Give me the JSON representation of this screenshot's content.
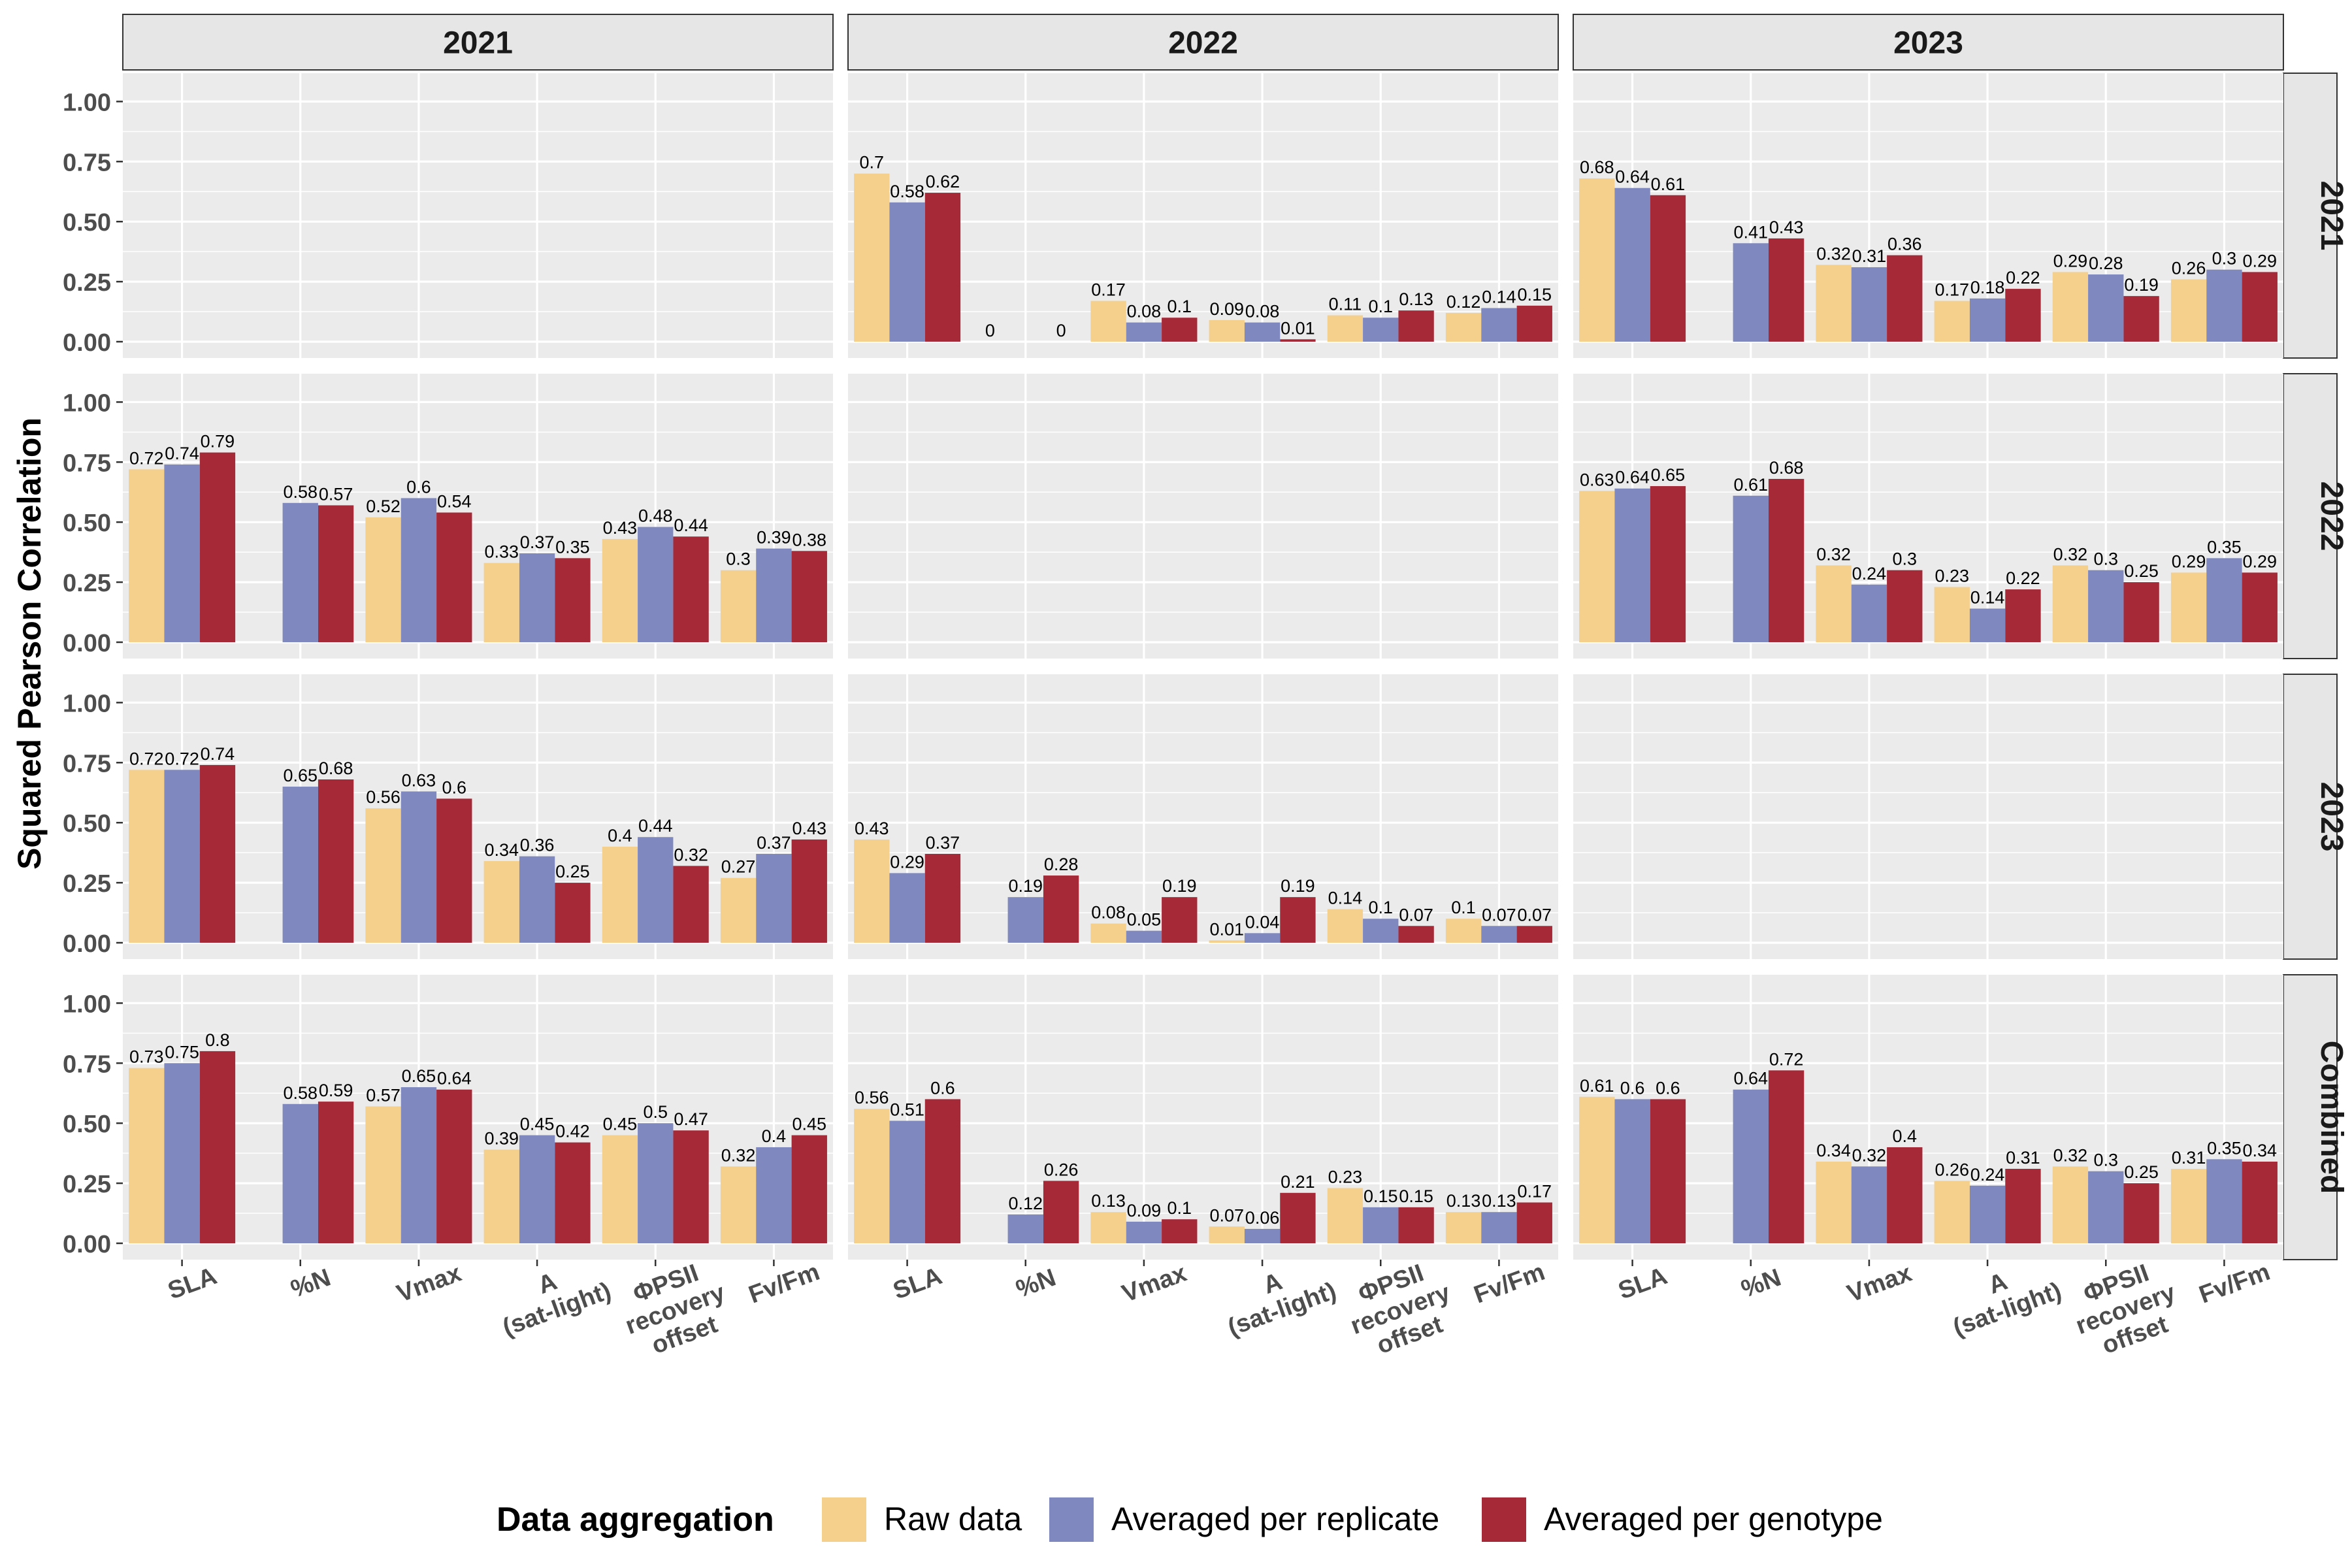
{
  "chart_data": {
    "type": "bar",
    "ylabel": "Squared Pearson Correlation",
    "xlabel": "",
    "ylim": [
      0,
      1.05
    ],
    "y_ticks": [
      "0.00",
      "0.25",
      "0.50",
      "0.75",
      "1.00"
    ],
    "y_tick_values": [
      0,
      0.25,
      0.5,
      0.75,
      1.0
    ],
    "column_facets": [
      "2021",
      "2022",
      "2023"
    ],
    "row_facets": [
      "2021",
      "2022",
      "2023",
      "Combined"
    ],
    "categories": [
      [
        "SLA"
      ],
      [
        "%N"
      ],
      [
        "Vmax"
      ],
      [
        "A",
        "(sat-light)"
      ],
      [
        "ΦPSII",
        "recovery",
        "offset"
      ],
      [
        "Fv/Fm"
      ]
    ],
    "legend": {
      "title": "Data aggregation",
      "placement": "bottom",
      "items": [
        {
          "name": "Raw data",
          "color": "#F5D08C"
        },
        {
          "name": "Averaged per replicate",
          "color": "#7F89C0"
        },
        {
          "name": "Averaged per genotype",
          "color": "#A52937"
        }
      ]
    },
    "panel_background": "#EBEBEB",
    "strip_background": "#E6E6E6",
    "grid": true,
    "panels": [
      {
        "row": "2021",
        "col": "2021",
        "values": null
      },
      {
        "row": "2021",
        "col": "2022",
        "values": [
          [
            0.7,
            0.58,
            0.62
          ],
          [
            0,
            null,
            0
          ],
          [
            0.17,
            0.08,
            0.1
          ],
          [
            0.09,
            0.08,
            0.01
          ],
          [
            0.11,
            0.1,
            0.13
          ],
          [
            0.12,
            0.14,
            0.15
          ]
        ]
      },
      {
        "row": "2021",
        "col": "2023",
        "values": [
          [
            0.68,
            0.64,
            0.61
          ],
          [
            null,
            0.41,
            0.43
          ],
          [
            0.32,
            0.31,
            0.36
          ],
          [
            0.17,
            0.18,
            0.22
          ],
          [
            0.29,
            0.28,
            0.19
          ],
          [
            0.26,
            0.3,
            0.29
          ]
        ]
      },
      {
        "row": "2022",
        "col": "2021",
        "values": [
          [
            0.72,
            0.74,
            0.79
          ],
          [
            null,
            0.58,
            0.57
          ],
          [
            0.52,
            0.6,
            0.54
          ],
          [
            0.33,
            0.37,
            0.35
          ],
          [
            0.43,
            0.48,
            0.44
          ],
          [
            0.3,
            0.39,
            0.38
          ]
        ]
      },
      {
        "row": "2022",
        "col": "2022",
        "values": null
      },
      {
        "row": "2022",
        "col": "2023",
        "values": [
          [
            0.63,
            0.64,
            0.65
          ],
          [
            null,
            0.61,
            0.68
          ],
          [
            0.32,
            0.24,
            0.3
          ],
          [
            0.23,
            0.14,
            0.22
          ],
          [
            0.32,
            0.3,
            0.25
          ],
          [
            0.29,
            0.35,
            0.29
          ]
        ]
      },
      {
        "row": "2023",
        "col": "2021",
        "values": [
          [
            0.72,
            0.72,
            0.74
          ],
          [
            null,
            0.65,
            0.68
          ],
          [
            0.56,
            0.63,
            0.6
          ],
          [
            0.34,
            0.36,
            0.25
          ],
          [
            0.4,
            0.44,
            0.32
          ],
          [
            0.27,
            0.37,
            0.43
          ]
        ]
      },
      {
        "row": "2023",
        "col": "2022",
        "values": [
          [
            0.43,
            0.29,
            0.37
          ],
          [
            null,
            0.19,
            0.28
          ],
          [
            0.08,
            0.05,
            0.19
          ],
          [
            0.01,
            0.04,
            0.19
          ],
          [
            0.14,
            0.1,
            0.07
          ],
          [
            0.1,
            0.07,
            0.07
          ]
        ]
      },
      {
        "row": "2023",
        "col": "2023",
        "values": null
      },
      {
        "row": "Combined",
        "col": "2021",
        "values": [
          [
            0.73,
            0.75,
            0.8
          ],
          [
            null,
            0.58,
            0.59
          ],
          [
            0.57,
            0.65,
            0.64
          ],
          [
            0.39,
            0.45,
            0.42
          ],
          [
            0.45,
            0.5,
            0.47
          ],
          [
            0.32,
            0.4,
            0.45
          ]
        ]
      },
      {
        "row": "Combined",
        "col": "2022",
        "values": [
          [
            0.56,
            0.51,
            0.6
          ],
          [
            null,
            0.12,
            0.26
          ],
          [
            0.13,
            0.09,
            0.1
          ],
          [
            0.07,
            0.06,
            0.21
          ],
          [
            0.23,
            0.15,
            0.15
          ],
          [
            0.13,
            0.13,
            0.17
          ]
        ]
      },
      {
        "row": "Combined",
        "col": "2023",
        "values": [
          [
            0.61,
            0.6,
            0.6
          ],
          [
            null,
            0.64,
            0.72
          ],
          [
            0.34,
            0.32,
            0.4
          ],
          [
            0.26,
            0.24,
            0.31
          ],
          [
            0.32,
            0.3,
            0.25
          ],
          [
            0.31,
            0.35,
            0.34
          ]
        ]
      }
    ]
  }
}
